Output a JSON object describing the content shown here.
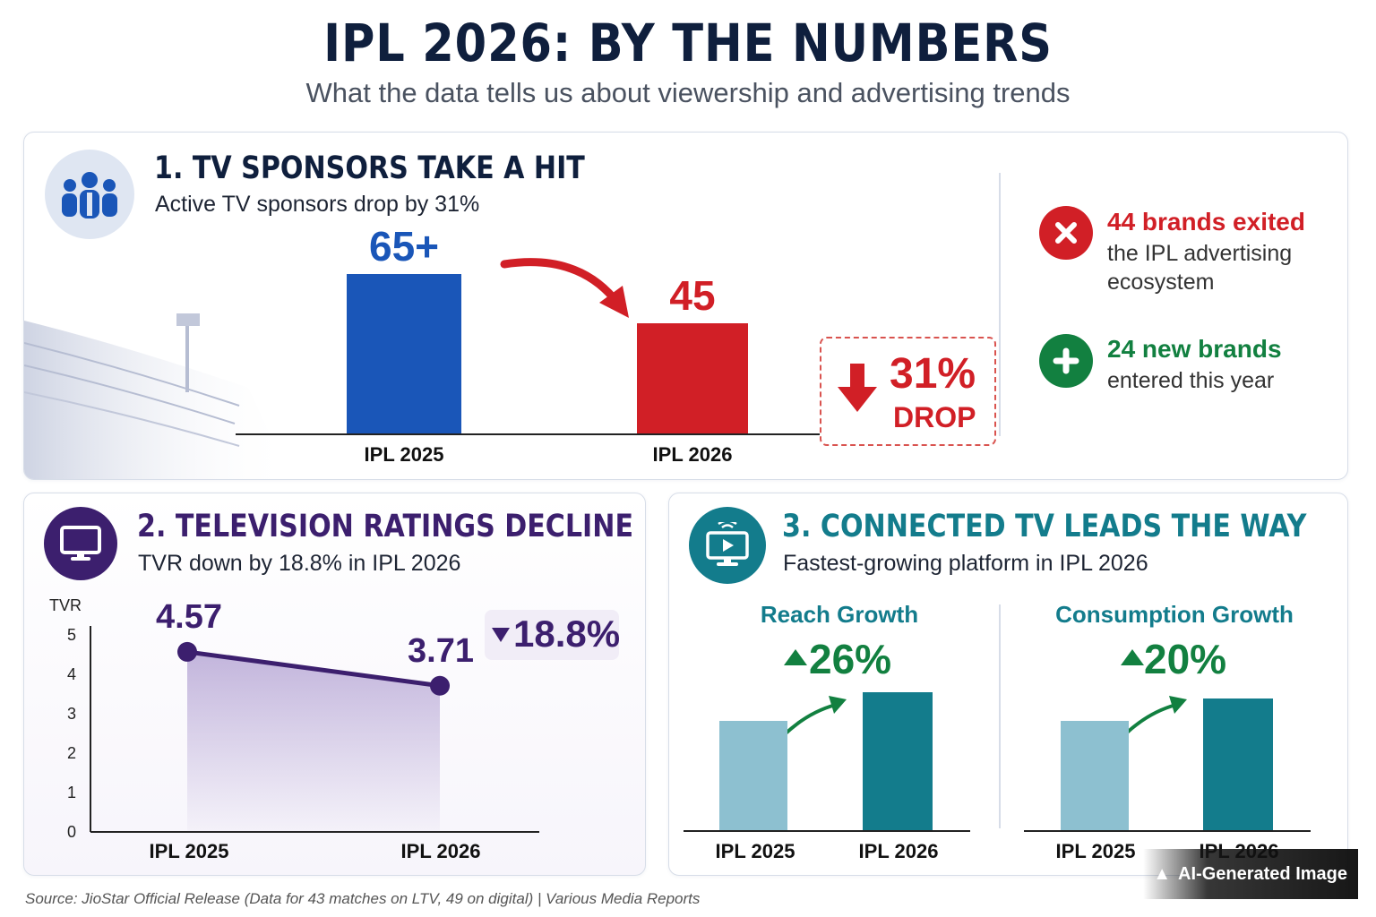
{
  "header": {
    "title": "IPL 2026: BY THE NUMBERS",
    "subtitle": "What the data tells us about viewership and advertising trends"
  },
  "section1": {
    "title": "1. TV SPONSORS TAKE A HIT",
    "subtitle": "Active TV sponsors drop by 31%",
    "icon": "people-group-icon",
    "drop_pct": "31%",
    "drop_word": "DROP",
    "exited_title": "44 brands exited",
    "exited_line1": "the IPL advertising",
    "exited_line2": "ecosystem",
    "new_title": "24 new brands",
    "new_line1": "entered this year"
  },
  "section2": {
    "title": "2. TELEVISION RATINGS DECLINE",
    "subtitle": "TVR down by 18.8% in IPL 2026",
    "icon": "television-icon",
    "change": "18.8%"
  },
  "section3": {
    "title": "3. CONNECTED TV LEADS THE WAY",
    "subtitle": "Fastest-growing platform in IPL 2026",
    "icon": "connected-tv-icon",
    "reach_title": "Reach Growth",
    "reach_change": "26%",
    "consumption_title": "Consumption Growth",
    "consumption_change": "20%"
  },
  "colors": {
    "navy": "#0f1f3d",
    "blue_bar": "#1a56b8",
    "red_bar": "#d11f26",
    "purple": "#3c1f6e",
    "teal": "#137c8c",
    "light_teal": "#8dc0d0",
    "green": "#128040"
  },
  "chart_data": [
    {
      "type": "bar",
      "title": "1. TV SPONSORS TAKE A HIT",
      "categories": [
        "IPL 2025",
        "IPL 2026"
      ],
      "values": [
        65,
        45
      ],
      "value_labels": [
        "65+",
        "45"
      ]
    },
    {
      "type": "line",
      "title": "2. TELEVISION RATINGS DECLINE",
      "ylabel": "TVR",
      "x": [
        "IPL 2025",
        "IPL 2026"
      ],
      "values": [
        4.57,
        3.71
      ],
      "value_labels": [
        "4.57",
        "3.71"
      ],
      "ylim": [
        0,
        5
      ],
      "yticks": [
        "0",
        "1",
        "2",
        "3",
        "4",
        "5"
      ]
    },
    {
      "type": "bar",
      "title": "Reach Growth",
      "categories": [
        "IPL 2025",
        "IPL 2026"
      ],
      "values": [
        100,
        126
      ]
    },
    {
      "type": "bar",
      "title": "Consumption Growth",
      "categories": [
        "IPL 2025",
        "IPL 2026"
      ],
      "values": [
        100,
        120
      ]
    }
  ],
  "footer": {
    "source": "Source: JioStar Official Release (Data for 43 matches on LTV, 49 on digital) | Various Media Reports",
    "badge": "AI-Generated Image"
  }
}
